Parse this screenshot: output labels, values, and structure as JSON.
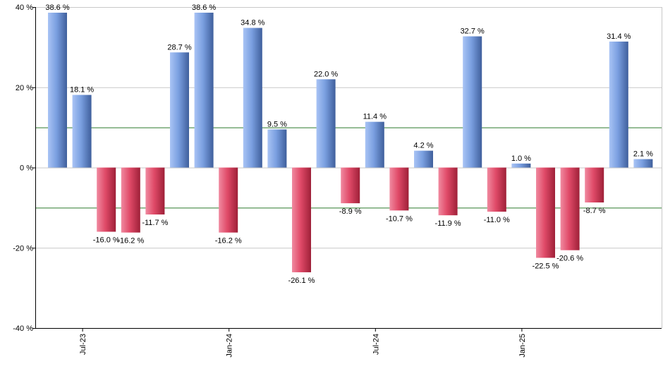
{
  "chart_data": {
    "type": "bar",
    "title": "",
    "xlabel": "",
    "ylabel": "",
    "ylim": [
      -40,
      40
    ],
    "yticks": [
      40,
      20,
      0,
      -20,
      -40
    ],
    "ytick_labels": [
      "40 %",
      "20 %",
      "0 %",
      "-20 %",
      "-40 %"
    ],
    "reference_lines": [
      10,
      -10
    ],
    "xtick_labels": [
      {
        "label": "Jul-23",
        "bar_index": 1
      },
      {
        "label": "Jan-24",
        "bar_index": 7
      },
      {
        "label": "Jul-24",
        "bar_index": 13
      },
      {
        "label": "Jan-25",
        "bar_index": 19
      }
    ],
    "values": [
      38.6,
      18.1,
      -16.0,
      -16.2,
      -11.7,
      28.7,
      38.6,
      -16.2,
      34.8,
      9.5,
      -26.1,
      22.0,
      -8.9,
      11.4,
      -10.7,
      4.2,
      -11.9,
      32.7,
      -11.0,
      1.0,
      -22.5,
      -20.6,
      -8.7,
      31.4,
      2.1
    ],
    "labels": [
      "38.6 %",
      "18.1 %",
      "-16.0 %",
      "-16.2 %",
      "-11.7 %",
      "28.7 %",
      "38.6 %",
      "-16.2 %",
      "34.8 %",
      "9.5 %",
      "-26.1 %",
      "22.0 %",
      "-8.9 %",
      "11.4 %",
      "-10.7 %",
      "4.2 %",
      "-11.9 %",
      "32.7 %",
      "-11.0 %",
      "1.0 %",
      "-22.5 %",
      "-20.6 %",
      "-8.7 %",
      "31.4 %",
      "2.1 %"
    ],
    "colors": {
      "positive": "#7a9fe0",
      "positive_dark": "#3f5f9c",
      "negative": "#e04a68",
      "negative_dark": "#9e2038",
      "grid": "#c8c8c8",
      "reference": "#2d7a2d",
      "axis": "#000000"
    }
  }
}
